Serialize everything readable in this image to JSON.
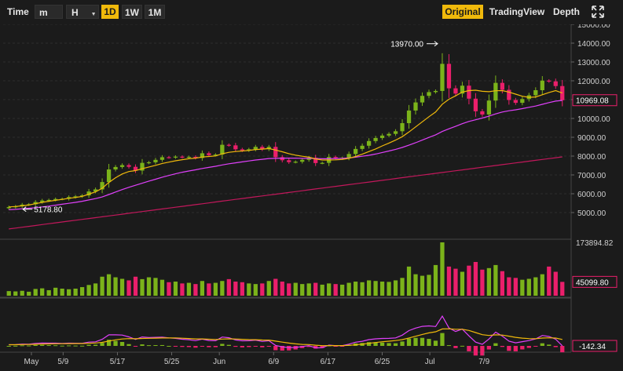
{
  "toolbar": {
    "time_label": "Time",
    "minute_label": "m",
    "hour_label": "H",
    "day_label": "1D",
    "week_label": "1W",
    "month_label": "1M",
    "original_label": "Original",
    "tradingview_label": "TradingView",
    "depth_label": "Depth",
    "accent": "#f0b90b"
  },
  "chart_data": {
    "type": "candlestick",
    "up_color": "#7bb31a",
    "down_color": "#ea1f6b",
    "price_axis": [
      "15000.00",
      "14000.00",
      "13000.00",
      "12000.00",
      "11000.00",
      "10000.00",
      "9000.00",
      "8000.00",
      "7000.00",
      "6000.00",
      "5000.00"
    ],
    "current_price": "10969.08",
    "high_marker": "13970.00",
    "low_marker": "5178.80",
    "volume_axis_max": "173894.82",
    "volume_current": "45099.80",
    "macd_current": "-142.34",
    "x_labels": [
      "May",
      "5/9",
      "5/17",
      "5/25",
      "Jun",
      "6/9",
      "6/17",
      "6/25",
      "Jul",
      "7/9"
    ],
    "close": [
      5290,
      5330,
      5420,
      5440,
      5560,
      5640,
      5670,
      5720,
      5730,
      5820,
      5860,
      5910,
      6120,
      6230,
      6620,
      7290,
      7420,
      7520,
      7430,
      7230,
      7640,
      7670,
      7800,
      7940,
      7930,
      7970,
      7940,
      7960,
      7900,
      8150,
      8050,
      8080,
      8600,
      8570,
      8360,
      8300,
      8360,
      8490,
      8370,
      8490,
      7940,
      7780,
      7680,
      7700,
      7800,
      7910,
      7630,
      7640,
      7950,
      7900,
      7910,
      8110,
      8380,
      8550,
      8800,
      8960,
      9090,
      9180,
      9320,
      9750,
      10420,
      10850,
      11200,
      11400,
      11460,
      12900,
      11600,
      11320,
      11740,
      11050,
      10380,
      10210,
      10950,
      11890,
      11520,
      10980,
      10830,
      11030,
      11230,
      11500,
      12010,
      11970,
      11720,
      10969
    ],
    "volume": [
      15000,
      14000,
      16000,
      13000,
      22000,
      24000,
      18000,
      26000,
      23000,
      21000,
      23000,
      28000,
      35000,
      40000,
      62000,
      70000,
      60000,
      55000,
      50000,
      62000,
      54000,
      60000,
      58000,
      52000,
      44000,
      46000,
      40000,
      42000,
      38000,
      48000,
      40000,
      42000,
      48000,
      54000,
      46000,
      44000,
      40000,
      38000,
      40000,
      48000,
      55000,
      46000,
      40000,
      42000,
      38000,
      40000,
      42000,
      36000,
      40000,
      38000,
      36000,
      42000,
      46000,
      44000,
      50000,
      48000,
      46000,
      45000,
      50000,
      58000,
      95000,
      70000,
      65000,
      68000,
      100000,
      173894,
      95000,
      88000,
      78000,
      98000,
      110000,
      85000,
      90000,
      100000,
      80000,
      60000,
      58000,
      52000,
      55000,
      60000,
      70000,
      95000,
      78000,
      45099
    ],
    "ma_short": [
      5300,
      5320,
      5360,
      5400,
      5470,
      5540,
      5600,
      5650,
      5700,
      5760,
      5800,
      5860,
      5980,
      6100,
      6290,
      6600,
      6850,
      7050,
      7180,
      7230,
      7330,
      7420,
      7510,
      7610,
      7680,
      7750,
      7810,
      7860,
      7890,
      7950,
      7980,
      8010,
      8120,
      8200,
      8240,
      8270,
      8300,
      8350,
      8370,
      8400,
      8320,
      8230,
      8130,
      8050,
      7990,
      7940,
      7850,
      7790,
      7790,
      7800,
      7820,
      7880,
      7980,
      8100,
      8240,
      8380,
      8540,
      8690,
      8850,
      9030,
      9280,
      9550,
      9820,
      10090,
      10340,
      10760,
      11020,
      11200,
      11400,
      11480,
      11500,
      11440,
      11420,
      11470,
      11480,
      11400,
      11290,
      11180,
      11120,
      11140,
      11260,
      11380,
      11480,
      11350
    ],
    "ma_mid": [
      5150,
      5170,
      5200,
      5230,
      5260,
      5300,
      5340,
      5390,
      5440,
      5490,
      5540,
      5600,
      5670,
      5740,
      5830,
      5960,
      6090,
      6220,
      6340,
      6450,
      6560,
      6670,
      6770,
      6880,
      6970,
      7060,
      7140,
      7210,
      7270,
      7340,
      7400,
      7460,
      7530,
      7590,
      7640,
      7690,
      7740,
      7790,
      7830,
      7870,
      7880,
      7890,
      7890,
      7890,
      7880,
      7880,
      7870,
      7860,
      7860,
      7870,
      7880,
      7900,
      7940,
      7990,
      8040,
      8110,
      8190,
      8270,
      8360,
      8460,
      8580,
      8710,
      8850,
      8990,
      9130,
      9310,
      9450,
      9580,
      9720,
      9840,
      9930,
      10020,
      10120,
      10240,
      10340,
      10410,
      10460,
      10520,
      10590,
      10660,
      10750,
      10840,
      10920,
      10960
    ]
  }
}
